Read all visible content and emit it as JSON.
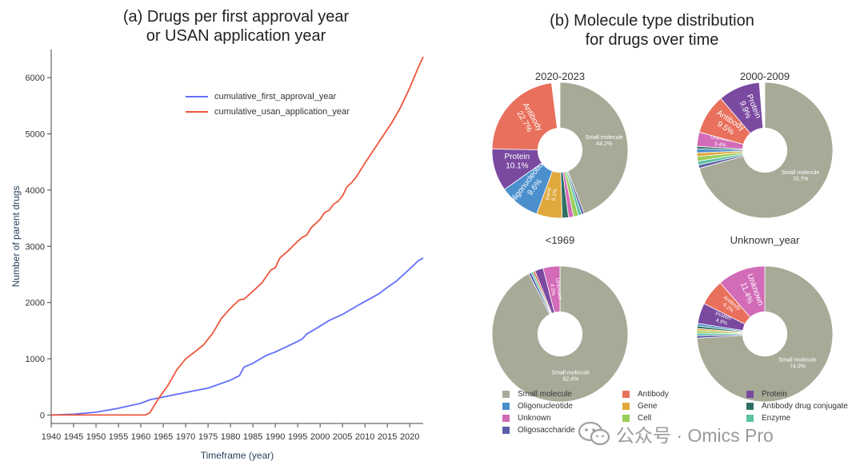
{
  "panel_a": {
    "title_line1": "(a) Drugs per first approval year",
    "title_line2": "or USAN application year"
  },
  "panel_b": {
    "title_line1": "(b) Molecule type distribution",
    "title_line2": "for drugs over time"
  },
  "watermark": {
    "text": "公众号 · Omics Pro",
    "icon": "wechat-icon"
  },
  "chart_data": [
    {
      "type": "line",
      "title": "(a) Drugs per first approval year or USAN application year",
      "xlabel": "Timeframe (year)",
      "ylabel": "Number of parent drugs",
      "xlim": [
        1940,
        2023
      ],
      "ylim": [
        -150,
        6500
      ],
      "x_ticks": [
        1940,
        1945,
        1950,
        1955,
        1960,
        1965,
        1970,
        1975,
        1980,
        1985,
        1990,
        1995,
        2000,
        2005,
        2010,
        2015,
        2020
      ],
      "y_ticks": [
        0,
        1000,
        2000,
        3000,
        4000,
        5000,
        6000
      ],
      "legend_position": "top-right",
      "series": [
        {
          "name": "cumulative_first_approval_year",
          "color": "#636efa",
          "points": [
            [
              1940,
              0
            ],
            [
              1945,
              15
            ],
            [
              1950,
              50
            ],
            [
              1955,
              120
            ],
            [
              1960,
              210
            ],
            [
              1962,
              270
            ],
            [
              1965,
              320
            ],
            [
              1970,
              400
            ],
            [
              1975,
              480
            ],
            [
              1980,
              620
            ],
            [
              1982,
              700
            ],
            [
              1983,
              850
            ],
            [
              1985,
              920
            ],
            [
              1988,
              1060
            ],
            [
              1990,
              1120
            ],
            [
              1995,
              1310
            ],
            [
              1996,
              1350
            ],
            [
              1997,
              1440
            ],
            [
              2000,
              1580
            ],
            [
              2002,
              1680
            ],
            [
              2005,
              1790
            ],
            [
              2008,
              1930
            ],
            [
              2010,
              2020
            ],
            [
              2013,
              2150
            ],
            [
              2015,
              2270
            ],
            [
              2017,
              2380
            ],
            [
              2020,
              2600
            ],
            [
              2022,
              2750
            ],
            [
              2023,
              2790
            ]
          ]
        },
        {
          "name": "cumulative_usan_application_year",
          "color": "#ef553b",
          "points": [
            [
              1940,
              0
            ],
            [
              1945,
              0
            ],
            [
              1950,
              0
            ],
            [
              1955,
              0
            ],
            [
              1960,
              0
            ],
            [
              1961,
              0
            ],
            [
              1962,
              40
            ],
            [
              1964,
              300
            ],
            [
              1966,
              520
            ],
            [
              1968,
              800
            ],
            [
              1970,
              1000
            ],
            [
              1972,
              1120
            ],
            [
              1974,
              1250
            ],
            [
              1976,
              1450
            ],
            [
              1978,
              1720
            ],
            [
              1980,
              1900
            ],
            [
              1982,
              2050
            ],
            [
              1983,
              2060
            ],
            [
              1985,
              2200
            ],
            [
              1987,
              2350
            ],
            [
              1989,
              2580
            ],
            [
              1990,
              2620
            ],
            [
              1991,
              2790
            ],
            [
              1993,
              2930
            ],
            [
              1995,
              3090
            ],
            [
              1996,
              3160
            ],
            [
              1997,
              3200
            ],
            [
              1998,
              3330
            ],
            [
              2000,
              3480
            ],
            [
              2001,
              3600
            ],
            [
              2002,
              3640
            ],
            [
              2003,
              3750
            ],
            [
              2004,
              3800
            ],
            [
              2005,
              3900
            ],
            [
              2006,
              4060
            ],
            [
              2007,
              4130
            ],
            [
              2008,
              4230
            ],
            [
              2010,
              4480
            ],
            [
              2012,
              4720
            ],
            [
              2014,
              4960
            ],
            [
              2016,
              5200
            ],
            [
              2018,
              5480
            ],
            [
              2020,
              5820
            ],
            [
              2022,
              6200
            ],
            [
              2023,
              6370
            ]
          ]
        }
      ]
    },
    {
      "type": "pie",
      "title": "(b) Molecule type distribution for drugs over time",
      "hole": 0.33,
      "colors": {
        "Small molecule": "#a8aa98",
        "Antibody": "#e8705c",
        "Protein": "#7a4aa0",
        "Oligonucleotide": "#4b8fcd",
        "Gene": "#e1a93d",
        "Antibody drug conjugate": "#2f6f63",
        "Unknown": "#d26bb8",
        "Cell": "#9acd5a",
        "Enzyme": "#5cc2a2",
        "Oligosaccharide": "#5b5ea8"
      },
      "legend": [
        "Small molecule",
        "Antibody",
        "Protein",
        "Oligonucleotide",
        "Gene",
        "Antibody drug conjugate",
        "Unknown",
        "Cell",
        "Enzyme",
        "Oligosaccharide"
      ],
      "pies": [
        {
          "title": "2020-2023",
          "slices": [
            {
              "label": "Small molecule",
              "pct": 44.2,
              "text": "Small molecule\n44.2%"
            },
            {
              "label": "Oligosaccharide",
              "pct": 0.6,
              "text": ""
            },
            {
              "label": "Enzyme",
              "pct": 0.8,
              "text": ""
            },
            {
              "label": "Cell",
              "pct": 1.2,
              "text": ""
            },
            {
              "label": "Unknown",
              "pct": 1.2,
              "text": ""
            },
            {
              "label": "Antibody drug conjugate",
              "pct": 1.5,
              "text": ""
            },
            {
              "label": "Gene",
              "pct": 6.1,
              "text": "Gene\n6.1%"
            },
            {
              "label": "Oligonucleotide",
              "pct": 9.6,
              "text": "Oligonucleotide\n9.6%"
            },
            {
              "label": "Protein",
              "pct": 10.1,
              "text": "Protein\n10.1%"
            },
            {
              "label": "Antibody",
              "pct": 22.7,
              "text": "Antibody\n22.7%"
            }
          ]
        },
        {
          "title": "2000-2009",
          "slices": [
            {
              "label": "Small molecule",
              "pct": 70.7,
              "text": "Small molecule\n70.7%"
            },
            {
              "label": "Oligosaccharide",
              "pct": 0.8,
              "text": ""
            },
            {
              "label": "Enzyme",
              "pct": 0.9,
              "text": ""
            },
            {
              "label": "Cell",
              "pct": 1.1,
              "text": ""
            },
            {
              "label": "Gene",
              "pct": 0.9,
              "text": ""
            },
            {
              "label": "Oligonucleotide",
              "pct": 0.9,
              "text": ""
            },
            {
              "label": "Antibody drug conjugate",
              "pct": 0.6,
              "text": ""
            },
            {
              "label": "Unknown",
              "pct": 3.4,
              "text": "Unknown\n3.4%"
            },
            {
              "label": "Antibody",
              "pct": 9.5,
              "text": "Antibody\n9.5%"
            },
            {
              "label": "Protein",
              "pct": 9.9,
              "text": "Protein\n9.9%"
            }
          ]
        },
        {
          "title": "<1969",
          "slices": [
            {
              "label": "Small molecule",
              "pct": 92.4,
              "text": "Small molecule\n92.4%"
            },
            {
              "label": "Oligosaccharide",
              "pct": 0.6,
              "text": ""
            },
            {
              "label": "Enzyme",
              "pct": 0.5,
              "text": ""
            },
            {
              "label": "Antibody",
              "pct": 0.5,
              "text": ""
            },
            {
              "label": "Protein",
              "pct": 2.0,
              "text": ""
            },
            {
              "label": "Unknown",
              "pct": 4.0,
              "text": "Unknown\n4.0%"
            }
          ]
        },
        {
          "title": "Unknown_year",
          "slices": [
            {
              "label": "Small molecule",
              "pct": 74.0,
              "text": "Small molecule\n74.0%"
            },
            {
              "label": "Oligosaccharide",
              "pct": 0.6,
              "text": ""
            },
            {
              "label": "Enzyme",
              "pct": 0.6,
              "text": ""
            },
            {
              "label": "Cell",
              "pct": 0.6,
              "text": ""
            },
            {
              "label": "Gene",
              "pct": 0.5,
              "text": ""
            },
            {
              "label": "Antibody drug conjugate",
              "pct": 0.6,
              "text": ""
            },
            {
              "label": "Oligonucleotide",
              "pct": 0.6,
              "text": ""
            },
            {
              "label": "Protein",
              "pct": 4.9,
              "text": "Protein\n4.9%"
            },
            {
              "label": "Antibody",
              "pct": 6.2,
              "text": "Antibody\n6.2%"
            },
            {
              "label": "Unknown",
              "pct": 11.4,
              "text": "Unknown\n11.4%"
            }
          ]
        }
      ]
    }
  ]
}
